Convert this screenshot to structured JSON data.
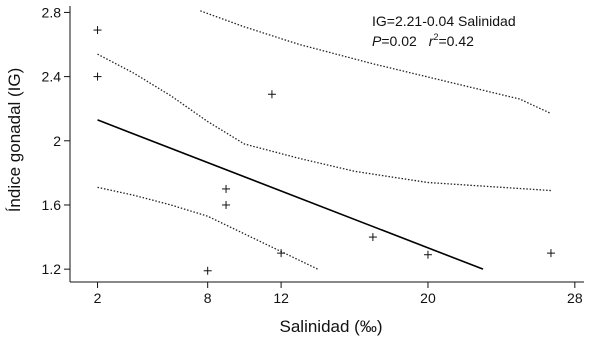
{
  "chart_data": {
    "type": "scatter",
    "xlabel": "Salinidad (‰)",
    "ylabel": "Índice gonadal (IG)",
    "xlim": [
      0.5,
      28.5
    ],
    "ylim": [
      1.12,
      2.84
    ],
    "x_ticks": [
      2,
      8,
      12,
      20,
      28
    ],
    "y_ticks": [
      1.2,
      1.6,
      2.0,
      2.4,
      2.8
    ],
    "x_tick_labels": [
      "2",
      "8",
      "12",
      "20",
      "28"
    ],
    "y_tick_labels": [
      "1.2",
      "1.6",
      "2",
      "2.4",
      "2.8"
    ],
    "grid": false,
    "points": [
      {
        "x": 2.0,
        "y": 2.69
      },
      {
        "x": 2.0,
        "y": 2.4
      },
      {
        "x": 11.5,
        "y": 2.29
      },
      {
        "x": 9.0,
        "y": 1.7
      },
      {
        "x": 9.0,
        "y": 1.6
      },
      {
        "x": 12.0,
        "y": 1.3
      },
      {
        "x": 17.0,
        "y": 1.4
      },
      {
        "x": 20.0,
        "y": 1.29
      },
      {
        "x": 26.7,
        "y": 1.3
      },
      {
        "x": 8.0,
        "y": 1.19
      }
    ],
    "regression_line": {
      "x": [
        2.0,
        23.0
      ],
      "y": [
        2.13,
        1.2
      ]
    },
    "upper_prediction_band": {
      "x": [
        7.6,
        10.0,
        13.0,
        17.0,
        21.0,
        25.0,
        26.7
      ],
      "y": [
        2.81,
        2.71,
        2.6,
        2.48,
        2.37,
        2.26,
        2.17
      ]
    },
    "upper_confidence_band": {
      "x": [
        2.0,
        4.0,
        6.0,
        8.0,
        10.0,
        13.0,
        16.0,
        20.0,
        24.0,
        26.7
      ],
      "y": [
        2.54,
        2.42,
        2.28,
        2.12,
        1.98,
        1.89,
        1.81,
        1.74,
        1.71,
        1.69
      ]
    },
    "lower_confidence_band": {
      "x": [
        2.0,
        4.0,
        6.0,
        8.0,
        10.0,
        12.0,
        14.0
      ],
      "y": [
        1.71,
        1.66,
        1.6,
        1.53,
        1.42,
        1.31,
        1.2
      ]
    },
    "annotation": {
      "equation": "IG=2.21-0.04 Salinidad",
      "p_symbol": "P",
      "p_value": "=0.02",
      "r_symbol": "r",
      "r_exponent": "2",
      "r_value": "=0.42"
    }
  }
}
